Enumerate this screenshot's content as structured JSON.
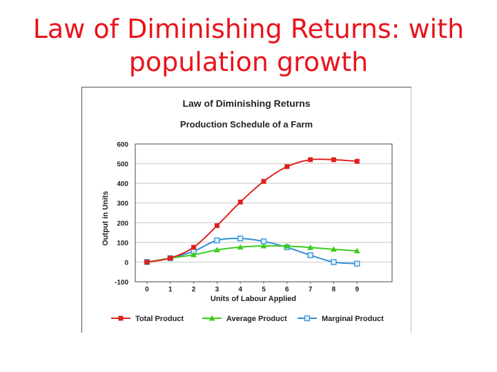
{
  "slide": {
    "title_line1": "Law of Diminishing Returns: with",
    "title_line2": "population growth"
  },
  "chart_data": {
    "type": "line",
    "title": "Law of Diminishing Returns",
    "subtitle": "Production Schedule of a Farm",
    "xlabel": "Units of Labour Applied",
    "ylabel": "Output in Units",
    "x": [
      0,
      1,
      2,
      3,
      4,
      5,
      6,
      7,
      8,
      9
    ],
    "xlim": [
      -0.5,
      10.5
    ],
    "ylim": [
      -100,
      600
    ],
    "yticks": [
      -100,
      0,
      100,
      200,
      300,
      400,
      500,
      600
    ],
    "grid": true,
    "legend_position": "bottom",
    "series": [
      {
        "name": "Total Product",
        "color": "#e0201c",
        "marker": "square",
        "values": [
          0,
          20,
          75,
          185,
          305,
          410,
          485,
          520,
          520,
          512
        ]
      },
      {
        "name": "Average Product",
        "color": "#3ccc1c",
        "marker": "triangle",
        "values": [
          0,
          20,
          37,
          62,
          76,
          82,
          81,
          74,
          65,
          57
        ]
      },
      {
        "name": "Marginal Product",
        "color": "#2f8fd8",
        "marker": "square-open",
        "values": [
          0,
          20,
          55,
          110,
          120,
          105,
          75,
          35,
          0,
          -8
        ]
      }
    ]
  }
}
